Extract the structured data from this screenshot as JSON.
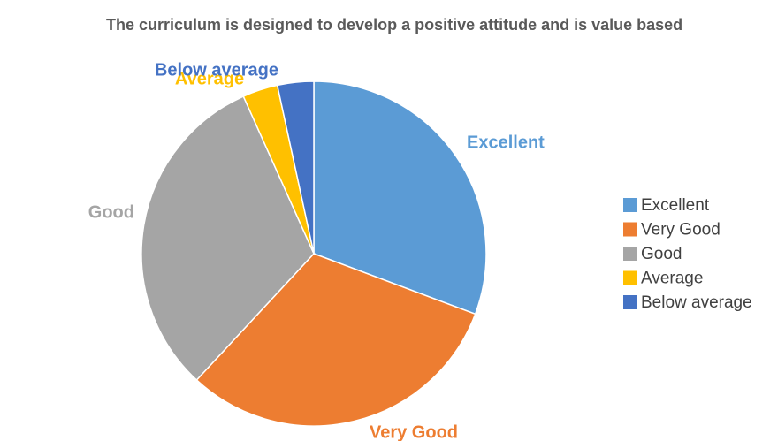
{
  "chart_data": {
    "type": "pie",
    "title": "The curriculum is designed to develop a positive attitude and is value based",
    "categories": [
      "Excellent",
      "Very Good",
      "Good",
      "Average",
      "Below average"
    ],
    "values": [
      30.7,
      31.2,
      31.4,
      3.3,
      3.4
    ],
    "colors": [
      "#5b9bd5",
      "#ed7d31",
      "#a5a5a5",
      "#ffc000",
      "#4472c4"
    ],
    "legend": "right"
  }
}
